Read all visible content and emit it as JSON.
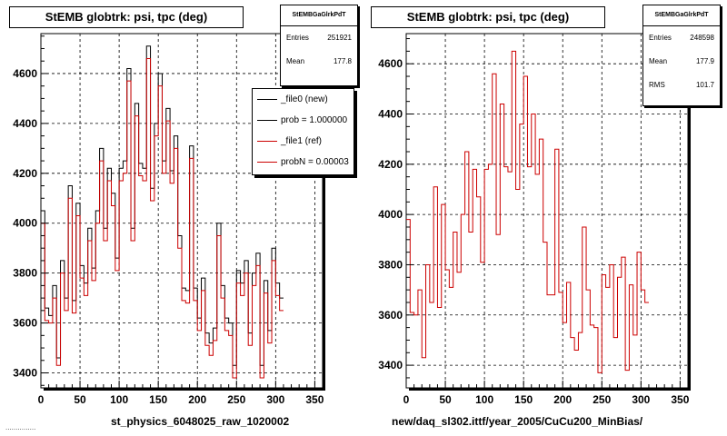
{
  "panels": [
    {
      "title": "StEMB globtrk: psi, tpc (deg)",
      "xtitle": "st_physics_6048025_raw_1020002",
      "stats": {
        "name": "StEMBGaGlrkPdT",
        "rows": [
          {
            "label": "Entries",
            "value": "251921"
          },
          {
            "label": "Mean",
            "value": "177.8"
          }
        ]
      },
      "legend": [
        {
          "label": "_file0 (new)",
          "color": "#000000"
        },
        {
          "label": "prob = 1.000000",
          "color": "#000000"
        },
        {
          "label": "_file1 (ref)",
          "color": "#cc0000"
        },
        {
          "label": "probN = 0.00003",
          "color": "#cc0000"
        }
      ]
    },
    {
      "title": "StEMB globtrk: psi, tpc (deg)",
      "xtitle": "new/daq_sl302.ittf/year_2005/CuCu200_MinBias/",
      "stats": {
        "name": "StEMBGaGlrkPdT",
        "rows": [
          {
            "label": "Entries",
            "value": "248598"
          },
          {
            "label": "Mean",
            "value": "177.9"
          },
          {
            "label": "RMS",
            "value": "101.7"
          }
        ]
      }
    }
  ],
  "footer": "...............",
  "chart_data": [
    {
      "type": "line",
      "style": "step",
      "title": "StEMB globtrk: psi, tpc (deg)",
      "xlabel": "st_physics_6048025_raw_1020002",
      "xlim": [
        0,
        360
      ],
      "ylim": [
        3340,
        4760
      ],
      "x_ticks": [
        0,
        50,
        100,
        150,
        200,
        250,
        300,
        350
      ],
      "y_ticks": [
        3400,
        3600,
        3800,
        4000,
        4200,
        4400,
        4600
      ],
      "grid": true,
      "legend_position": "top-right",
      "bin_width": 5,
      "series": [
        {
          "name": "_file0 (new)",
          "color": "#000000",
          "values": [
            4050,
            3660,
            3630,
            3750,
            3460,
            3850,
            3700,
            4150,
            3690,
            4080,
            3830,
            3760,
            3980,
            3820,
            4050,
            4300,
            3980,
            4220,
            4120,
            3860,
            4220,
            4250,
            4620,
            3980,
            4480,
            4240,
            4220,
            4710,
            4140,
            4400,
            4600,
            4250,
            4460,
            4210,
            4350,
            3950,
            3740,
            3730,
            4310,
            3740,
            3620,
            3780,
            3560,
            3520,
            3580,
            4000,
            3750,
            3620,
            3600,
            3430,
            3810,
            3760,
            3850,
            3560,
            3800,
            3880,
            3430,
            3770,
            3570,
            3900,
            3760,
            3700
          ]
        },
        {
          "name": "_file1 (ref)",
          "color": "#cc0000",
          "values": [
            4000,
            3610,
            3600,
            3700,
            3430,
            3800,
            3650,
            4100,
            3640,
            4030,
            3780,
            3710,
            3930,
            3770,
            4000,
            4250,
            3930,
            4170,
            4070,
            3810,
            4170,
            4200,
            4570,
            3930,
            4430,
            4190,
            4170,
            4660,
            4090,
            4350,
            4550,
            4200,
            4410,
            4160,
            4300,
            3900,
            3690,
            3680,
            4260,
            3690,
            3570,
            3730,
            3510,
            3470,
            3530,
            3950,
            3700,
            3570,
            3550,
            3380,
            3760,
            3710,
            3800,
            3510,
            3750,
            3830,
            3380,
            3720,
            3520,
            3850,
            3710,
            3650
          ]
        }
      ]
    },
    {
      "type": "line",
      "style": "step",
      "title": "StEMB globtrk: psi, tpc (deg)",
      "xlabel": "new/daq_sl302.ittf/year_2005/CuCu200_MinBias/",
      "xlim": [
        0,
        360
      ],
      "ylim": [
        3310,
        4720
      ],
      "x_ticks": [
        0,
        50,
        100,
        150,
        200,
        250,
        300,
        350
      ],
      "y_ticks": [
        3400,
        3600,
        3800,
        4000,
        4200,
        4400,
        4600
      ],
      "grid": true,
      "bin_width": 5,
      "series": [
        {
          "name": "",
          "color": "#cc0000",
          "values": [
            3980,
            3610,
            3600,
            3700,
            3430,
            3800,
            3650,
            4110,
            3630,
            4040,
            3780,
            3710,
            3930,
            3770,
            4000,
            4250,
            3930,
            4180,
            4070,
            3810,
            4180,
            4200,
            4560,
            3920,
            4440,
            4190,
            4170,
            4650,
            4100,
            4360,
            4550,
            4190,
            4400,
            4160,
            4300,
            3890,
            3680,
            3680,
            4260,
            3690,
            3570,
            3730,
            3510,
            3460,
            3530,
            3950,
            3700,
            3560,
            3550,
            3370,
            3760,
            3710,
            3800,
            3510,
            3750,
            3830,
            3380,
            3720,
            3520,
            3850,
            3700,
            3650
          ]
        }
      ]
    }
  ]
}
